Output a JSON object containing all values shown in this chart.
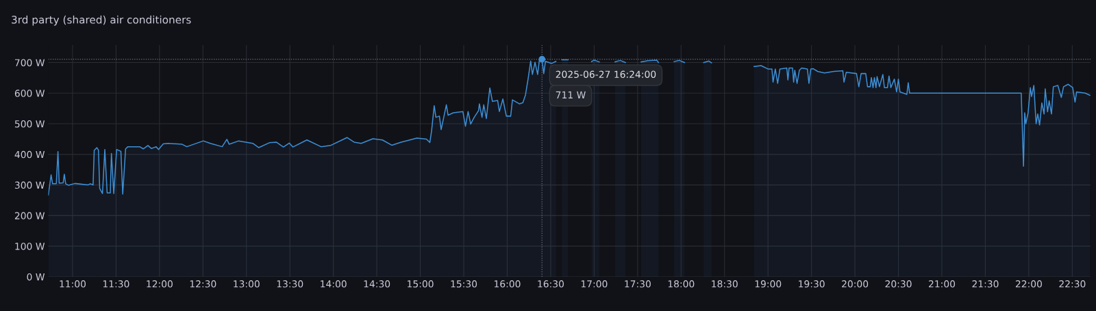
{
  "chart_data": {
    "type": "area",
    "title": "3rd party (shared) air conditioners",
    "x": [
      10.721,
      10.737,
      10.753,
      10.77,
      10.813,
      10.832,
      10.846,
      10.892,
      10.905,
      10.921,
      10.954,
      11.027,
      11.176,
      11.203,
      11.236,
      11.249,
      11.279,
      11.298,
      11.312,
      11.344,
      11.371,
      11.398,
      11.434,
      11.447,
      11.474,
      11.507,
      11.556,
      11.577,
      11.61,
      11.637,
      11.772,
      11.813,
      11.867,
      11.908,
      11.962,
      11.989,
      12.043,
      12.098,
      12.26,
      12.314,
      12.504,
      12.585,
      12.721,
      12.775,
      12.802,
      12.911,
      13.073,
      13.141,
      13.263,
      13.344,
      13.425,
      13.493,
      13.534,
      13.696,
      13.859,
      13.967,
      14.157,
      14.238,
      14.32,
      14.455,
      14.564,
      14.672,
      14.78,
      14.88,
      14.96,
      15.07,
      15.11,
      15.13,
      15.16,
      15.18,
      15.22,
      15.24,
      15.3,
      15.32,
      15.38,
      15.49,
      15.52,
      15.55,
      15.58,
      15.62,
      15.67,
      15.68,
      15.71,
      15.73,
      15.76,
      15.8,
      15.83,
      15.89,
      15.91,
      15.95,
      15.99,
      16.04,
      16.06,
      16.14,
      16.18,
      16.21,
      16.24,
      16.27,
      16.29,
      16.32,
      16.35,
      16.37,
      16.4,
      16.42,
      16.44,
      16.51,
      16.56,
      16.58,
      16.63,
      16.7,
      16.8,
      16.97,
      17.0,
      17.06,
      17.15,
      17.24,
      17.3,
      17.36,
      17.45,
      17.54,
      17.62,
      17.72,
      17.74,
      17.83,
      17.92,
      17.98,
      18.04,
      18.15,
      18.26,
      18.32,
      18.35,
      18.6,
      18.84,
      18.92,
      19.0,
      19.045,
      19.058,
      19.084,
      19.111,
      19.137,
      19.216,
      19.229,
      19.242,
      19.282,
      19.295,
      19.308,
      19.334,
      19.361,
      19.387,
      19.453,
      19.471,
      19.492,
      19.518,
      19.571,
      19.65,
      19.755,
      19.861,
      19.874,
      19.9,
      20.018,
      20.045,
      20.071,
      20.124,
      20.145,
      20.176,
      20.189,
      20.208,
      20.224,
      20.242,
      20.255,
      20.282,
      20.321,
      20.339,
      20.374,
      20.392,
      20.413,
      20.453,
      20.479,
      20.5,
      20.518,
      20.597,
      20.613,
      20.629,
      21.913,
      21.939,
      21.953,
      21.966,
      21.992,
      22.018,
      22.032,
      22.058,
      22.084,
      22.103,
      22.124,
      22.15,
      22.176,
      22.189,
      22.216,
      22.234,
      22.261,
      22.282,
      22.334,
      22.374,
      22.4,
      22.453,
      22.505,
      22.532,
      22.55,
      22.65,
      22.703
    ],
    "series": [
      {
        "color": "#3d8fd6",
        "values": [
          267,
          300,
          333,
          304,
          304,
          409,
          306,
          307,
          335,
          304,
          299,
          305,
          300,
          304,
          300,
          413,
          422,
          414,
          289,
          272,
          416,
          274,
          274,
          403,
          272,
          416,
          410,
          270,
          418,
          425,
          425,
          418,
          429,
          419,
          425,
          416,
          434,
          436,
          433,
          425,
          444,
          436,
          425,
          449,
          433,
          444,
          436,
          422,
          438,
          440,
          424,
          437,
          424,
          447,
          425,
          429,
          455,
          440,
          436,
          451,
          447,
          430,
          440,
          447,
          453,
          450,
          439,
          477,
          559,
          521,
          525,
          481,
          562,
          528,
          536,
          540,
          492,
          540,
          499,
          521,
          543,
          565,
          521,
          562,
          517,
          617,
          573,
          576,
          540,
          581,
          525,
          525,
          578,
          565,
          569,
          594,
          646,
          705,
          661,
          701,
          661,
          709,
          711,
          664,
          704,
          697,
          704,
          null,
          709,
          709,
          null,
          703,
          708,
          702,
          null,
          702,
          707,
          700,
          null,
          702,
          706,
          708,
          700,
          null,
          703,
          707,
          700,
          null,
          700,
          705,
          699,
          null,
          687,
          690,
          679,
          679,
          636,
          679,
          632,
          679,
          682,
          643,
          682,
          682,
          636,
          675,
          632,
          675,
          682,
          679,
          632,
          679,
          680,
          671,
          666,
          671,
          673,
          636,
          668,
          664,
          621,
          664,
          664,
          621,
          621,
          651,
          618,
          651,
          618,
          654,
          621,
          661,
          618,
          618,
          656,
          618,
          646,
          604,
          646,
          604,
          596,
          634,
          600,
          600,
          361,
          536,
          500,
          536,
          618,
          589,
          625,
          500,
          532,
          496,
          568,
          532,
          614,
          539,
          575,
          532,
          621,
          625,
          586,
          621,
          629,
          618,
          571,
          604,
          600,
          593
        ]
      }
    ],
    "xlim": [
      10.72,
      22.71
    ],
    "ylim": [
      0,
      757
    ],
    "xticks": [
      {
        "value": 11,
        "label": "11:00"
      },
      {
        "value": 11.5,
        "label": "11:30"
      },
      {
        "value": 12,
        "label": "12:00"
      },
      {
        "value": 12.5,
        "label": "12:30"
      },
      {
        "value": 13,
        "label": "13:00"
      },
      {
        "value": 13.5,
        "label": "13:30"
      },
      {
        "value": 14,
        "label": "14:00"
      },
      {
        "value": 14.5,
        "label": "14:30"
      },
      {
        "value": 15,
        "label": "15:00"
      },
      {
        "value": 15.5,
        "label": "15:30"
      },
      {
        "value": 16,
        "label": "16:00"
      },
      {
        "value": 16.5,
        "label": "16:30"
      },
      {
        "value": 17,
        "label": "17:00"
      },
      {
        "value": 17.5,
        "label": "17:30"
      },
      {
        "value": 18,
        "label": "18:00"
      },
      {
        "value": 18.5,
        "label": "18:30"
      },
      {
        "value": 19,
        "label": "19:00"
      },
      {
        "value": 19.5,
        "label": "19:30"
      },
      {
        "value": 20,
        "label": "20:00"
      },
      {
        "value": 20.5,
        "label": "20:30"
      },
      {
        "value": 21,
        "label": "21:00"
      },
      {
        "value": 21.5,
        "label": "21:30"
      },
      {
        "value": 22,
        "label": "22:00"
      },
      {
        "value": 22.5,
        "label": "22:30"
      }
    ],
    "yticks": [
      {
        "value": 0,
        "label": "0 W"
      },
      {
        "value": 100,
        "label": "100 W"
      },
      {
        "value": 200,
        "label": "200 W"
      },
      {
        "value": 300,
        "label": "300 W"
      },
      {
        "value": 400,
        "label": "400 W"
      },
      {
        "value": 500,
        "label": "500 W"
      },
      {
        "value": 600,
        "label": "600 W"
      },
      {
        "value": 700,
        "label": "700 W"
      }
    ],
    "grid": true,
    "ref_lines": [
      {
        "axis": "y",
        "value": 711,
        "color": "#6e7079",
        "line_style": "dotted"
      },
      {
        "axis": "x",
        "value": 16.4,
        "color": "#6e7079",
        "line_style": "dotted"
      }
    ],
    "annotations": [
      {
        "text": "2025-06-27 16:24:00",
        "x": 16.4,
        "y": 711
      },
      "711 W"
    ]
  }
}
